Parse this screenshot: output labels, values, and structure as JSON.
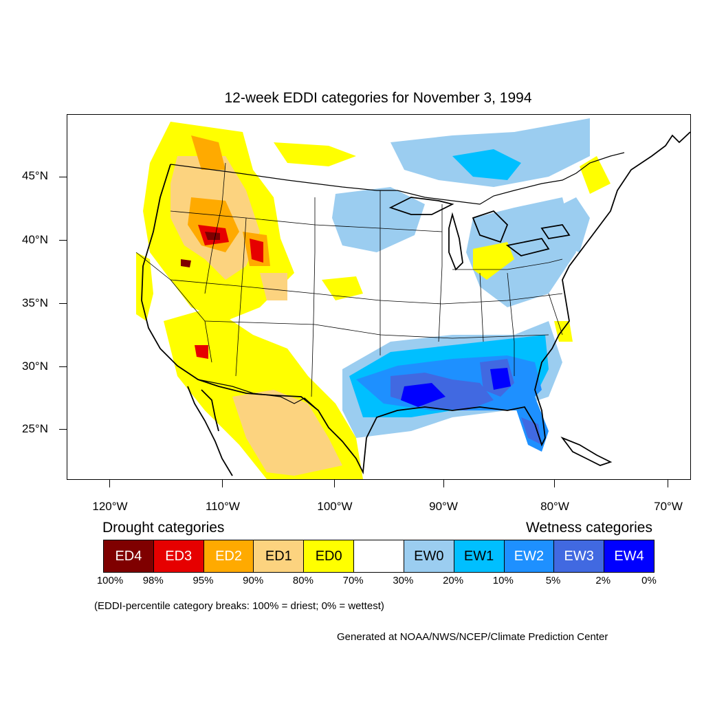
{
  "title": "12-week EDDI categories for November 3, 1994",
  "lat_labels": [
    "45°N",
    "40°N",
    "35°N",
    "30°N",
    "25°N"
  ],
  "lon_labels": [
    "120°W",
    "110°W",
    "100°W",
    "90°W",
    "80°W",
    "70°W"
  ],
  "drought_heading": "Drought categories",
  "wetness_heading": "Wetness categories",
  "legend": [
    {
      "label": "ED4",
      "color": "#7f0000",
      "text_color": "#ffffff"
    },
    {
      "label": "ED3",
      "color": "#e60000",
      "text_color": "#ffffff"
    },
    {
      "label": "ED2",
      "color": "#ffaa00",
      "text_color": "#ffffff"
    },
    {
      "label": "ED1",
      "color": "#fcd37f",
      "text_color": "#000000"
    },
    {
      "label": "ED0",
      "color": "#ffff00",
      "text_color": "#000000"
    },
    {
      "label": "",
      "color": "#ffffff",
      "text_color": "#000000"
    },
    {
      "label": "EW0",
      "color": "#9bcdf0",
      "text_color": "#000000"
    },
    {
      "label": "EW1",
      "color": "#00bfff",
      "text_color": "#000000"
    },
    {
      "label": "EW2",
      "color": "#1e90ff",
      "text_color": "#ffffff"
    },
    {
      "label": "EW3",
      "color": "#4169e1",
      "text_color": "#ffffff"
    },
    {
      "label": "EW4",
      "color": "#0000ff",
      "text_color": "#ffffff"
    }
  ],
  "percent_breaks": [
    "100%",
    "98%",
    "95%",
    "90%",
    "80%",
    "70%",
    "30%",
    "20%",
    "10%",
    "5%",
    "2%",
    "0%"
  ],
  "note": "(EDDI-percentile category breaks: 100% = driest; 0% = wettest)",
  "credit": "Generated at NOAA/NWS/NCEP/Climate Prediction Center"
}
